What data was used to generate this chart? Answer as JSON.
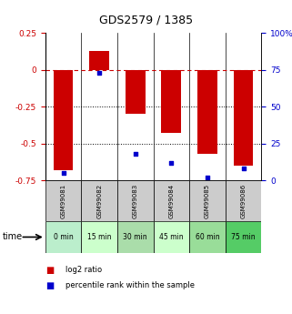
{
  "title": "GDS2579 / 1385",
  "samples": [
    "GSM99081",
    "GSM99082",
    "GSM99083",
    "GSM99084",
    "GSM99085",
    "GSM99086"
  ],
  "time_labels": [
    "0 min",
    "15 min",
    "30 min",
    "45 min",
    "60 min",
    "75 min"
  ],
  "time_colors": [
    "#bbeecc",
    "#ccffcc",
    "#aaddaa",
    "#ccffcc",
    "#99dd99",
    "#55cc66"
  ],
  "log2_values": [
    -0.68,
    0.13,
    -0.3,
    -0.43,
    -0.57,
    -0.65
  ],
  "percentile_values": [
    5,
    73,
    18,
    12,
    2,
    8
  ],
  "bar_color": "#cc0000",
  "dot_color": "#0000cc",
  "ylim_left": [
    -0.75,
    0.25
  ],
  "ylim_right": [
    0,
    100
  ],
  "yticks_left": [
    0.25,
    0.0,
    -0.25,
    -0.5,
    -0.75
  ],
  "yticks_right": [
    100,
    75,
    50,
    25,
    0
  ],
  "bg_color": "#ffffff"
}
